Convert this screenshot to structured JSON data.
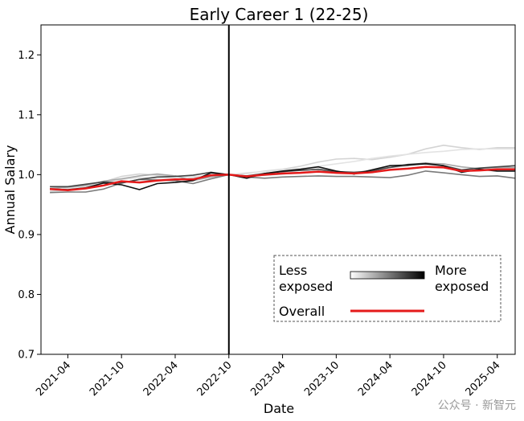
{
  "chart_data": {
    "type": "line",
    "title": "Early Career 1 (22-25)",
    "xlabel": "Date",
    "ylabel": "Annual Salary",
    "ylim": [
      0.7,
      1.25
    ],
    "yticks": [
      0.7,
      0.8,
      0.9,
      1.0,
      1.1,
      1.2
    ],
    "ytick_labels": [
      "0.7",
      "0.8",
      "0.9",
      "1.0",
      "1.1",
      "1.2"
    ],
    "xlim": [
      "2021-01",
      "2025-06"
    ],
    "xticks": [
      "2021-04",
      "2021-10",
      "2022-04",
      "2022-10",
      "2023-04",
      "2023-10",
      "2024-04",
      "2024-10",
      "2025-04"
    ],
    "reference_line_x": "2022-10",
    "grid": false,
    "legend": {
      "placement": "lower-right",
      "gradient_left_label": "Less\nexposed",
      "gradient_right_label": "More\nexposed",
      "overall_label": "Overall"
    },
    "x": [
      "2021-02",
      "2021-04",
      "2021-06",
      "2021-08",
      "2021-10",
      "2021-12",
      "2022-02",
      "2022-04",
      "2022-06",
      "2022-08",
      "2022-10",
      "2022-12",
      "2023-02",
      "2023-04",
      "2023-06",
      "2023-08",
      "2023-10",
      "2023-12",
      "2024-02",
      "2024-04",
      "2024-06",
      "2024-08",
      "2024-10",
      "2024-12",
      "2025-02",
      "2025-04",
      "2025-06"
    ],
    "series": [
      {
        "color": "#d4d4d4",
        "values": [
          0.972,
          0.974,
          0.978,
          0.988,
          0.997,
          1.001,
          0.999,
          0.998,
          0.995,
          0.999,
          1.0,
          1.002,
          1.006,
          1.009,
          1.014,
          1.021,
          1.026,
          1.027,
          1.025,
          1.029,
          1.034,
          1.043,
          1.049,
          1.045,
          1.042,
          1.045,
          1.045
        ]
      },
      {
        "color": "#e3e3e3",
        "values": [
          0.975,
          0.977,
          0.98,
          0.986,
          0.992,
          0.995,
          0.993,
          0.996,
          0.997,
          0.998,
          1.0,
          1.003,
          1.005,
          1.008,
          1.01,
          1.014,
          1.018,
          1.022,
          1.027,
          1.031,
          1.034,
          1.037,
          1.039,
          1.042,
          1.043,
          1.043,
          1.043
        ]
      },
      {
        "color": "#a8a8a8",
        "values": [
          0.977,
          0.979,
          0.982,
          0.989,
          0.993,
          0.998,
          1.001,
          0.998,
          0.99,
          0.996,
          1.0,
          0.998,
          0.999,
          1.001,
          1.003,
          1.006,
          1.004,
          1.003,
          1.007,
          1.012,
          1.015,
          1.019,
          1.018,
          1.013,
          1.01,
          1.012,
          1.012
        ]
      },
      {
        "color": "#7a7a7a",
        "values": [
          0.97,
          0.971,
          0.971,
          0.976,
          0.986,
          0.992,
          0.991,
          0.99,
          0.985,
          0.993,
          1.0,
          0.996,
          0.994,
          0.996,
          0.997,
          0.998,
          0.997,
          0.997,
          0.996,
          0.995,
          0.999,
          1.006,
          1.003,
          1.0,
          0.997,
          0.998,
          0.994
        ]
      },
      {
        "color": "#454545",
        "values": [
          0.98,
          0.98,
          0.984,
          0.988,
          0.986,
          0.992,
          0.996,
          0.997,
          0.999,
          1.004,
          1.0,
          0.998,
          1.002,
          1.005,
          1.007,
          1.009,
          1.005,
          1.004,
          1.006,
          1.012,
          1.017,
          1.019,
          1.015,
          1.008,
          1.011,
          1.013,
          1.015
        ]
      },
      {
        "color": "#101010",
        "values": [
          0.976,
          0.975,
          0.978,
          0.986,
          0.983,
          0.975,
          0.985,
          0.987,
          0.99,
          1.003,
          1.0,
          0.994,
          1.002,
          1.006,
          1.009,
          1.013,
          1.006,
          1.001,
          1.008,
          1.015,
          1.016,
          1.018,
          1.015,
          1.004,
          1.009,
          1.006,
          1.006
        ]
      },
      {
        "color": "#e41a1a",
        "overall": true,
        "values": [
          0.976,
          0.974,
          0.977,
          0.982,
          0.989,
          0.987,
          0.99,
          0.992,
          0.992,
          0.999,
          1.0,
          0.997,
          1.0,
          1.002,
          1.003,
          1.005,
          1.003,
          1.002,
          1.004,
          1.008,
          1.01,
          1.013,
          1.012,
          1.006,
          1.007,
          1.009,
          1.009
        ]
      }
    ]
  },
  "watermark": "公众号 · 新智元"
}
